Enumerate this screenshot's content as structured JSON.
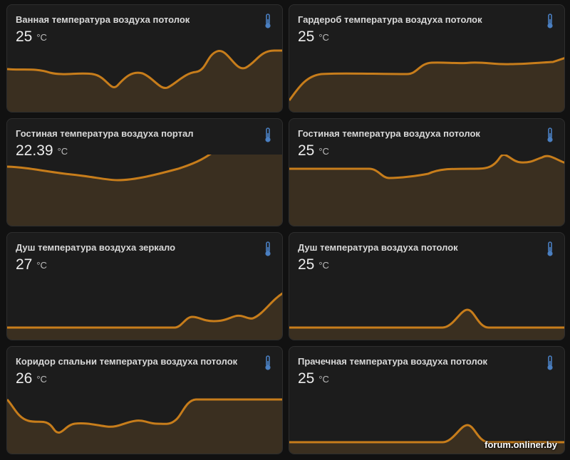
{
  "theme": {
    "accent": "#c77d1b",
    "fill": "#3a2f20",
    "icon": "#4a7fc1"
  },
  "cards": [
    {
      "name": "Ванная температура воздуха потолок",
      "value": "25",
      "unit": "°C",
      "icon": "thermometer-icon"
    },
    {
      "name": "Гардероб температура воздуха потолок",
      "value": "25",
      "unit": "°C",
      "icon": "thermometer-icon"
    },
    {
      "name": "Гостиная температура воздуха портал",
      "value": "22.39",
      "unit": "°C",
      "icon": "thermometer-icon"
    },
    {
      "name": "Гостиная температура воздуха потолок",
      "value": "25",
      "unit": "°C",
      "icon": "thermometer-icon"
    },
    {
      "name": "Душ температура воздуха зеркало",
      "value": "27",
      "unit": "°C",
      "icon": "thermometer-icon"
    },
    {
      "name": "Душ температура воздуха потолок",
      "value": "25",
      "unit": "°C",
      "icon": "thermometer-icon"
    },
    {
      "name": "Коридор спальни температура воздуха потолок",
      "value": "26",
      "unit": "°C",
      "icon": "thermometer-icon"
    },
    {
      "name": "Прачечная температура воздуха потолок",
      "value": "25",
      "unit": "°C",
      "icon": "thermometer-icon"
    }
  ],
  "watermark": "forum.onliner.by"
}
